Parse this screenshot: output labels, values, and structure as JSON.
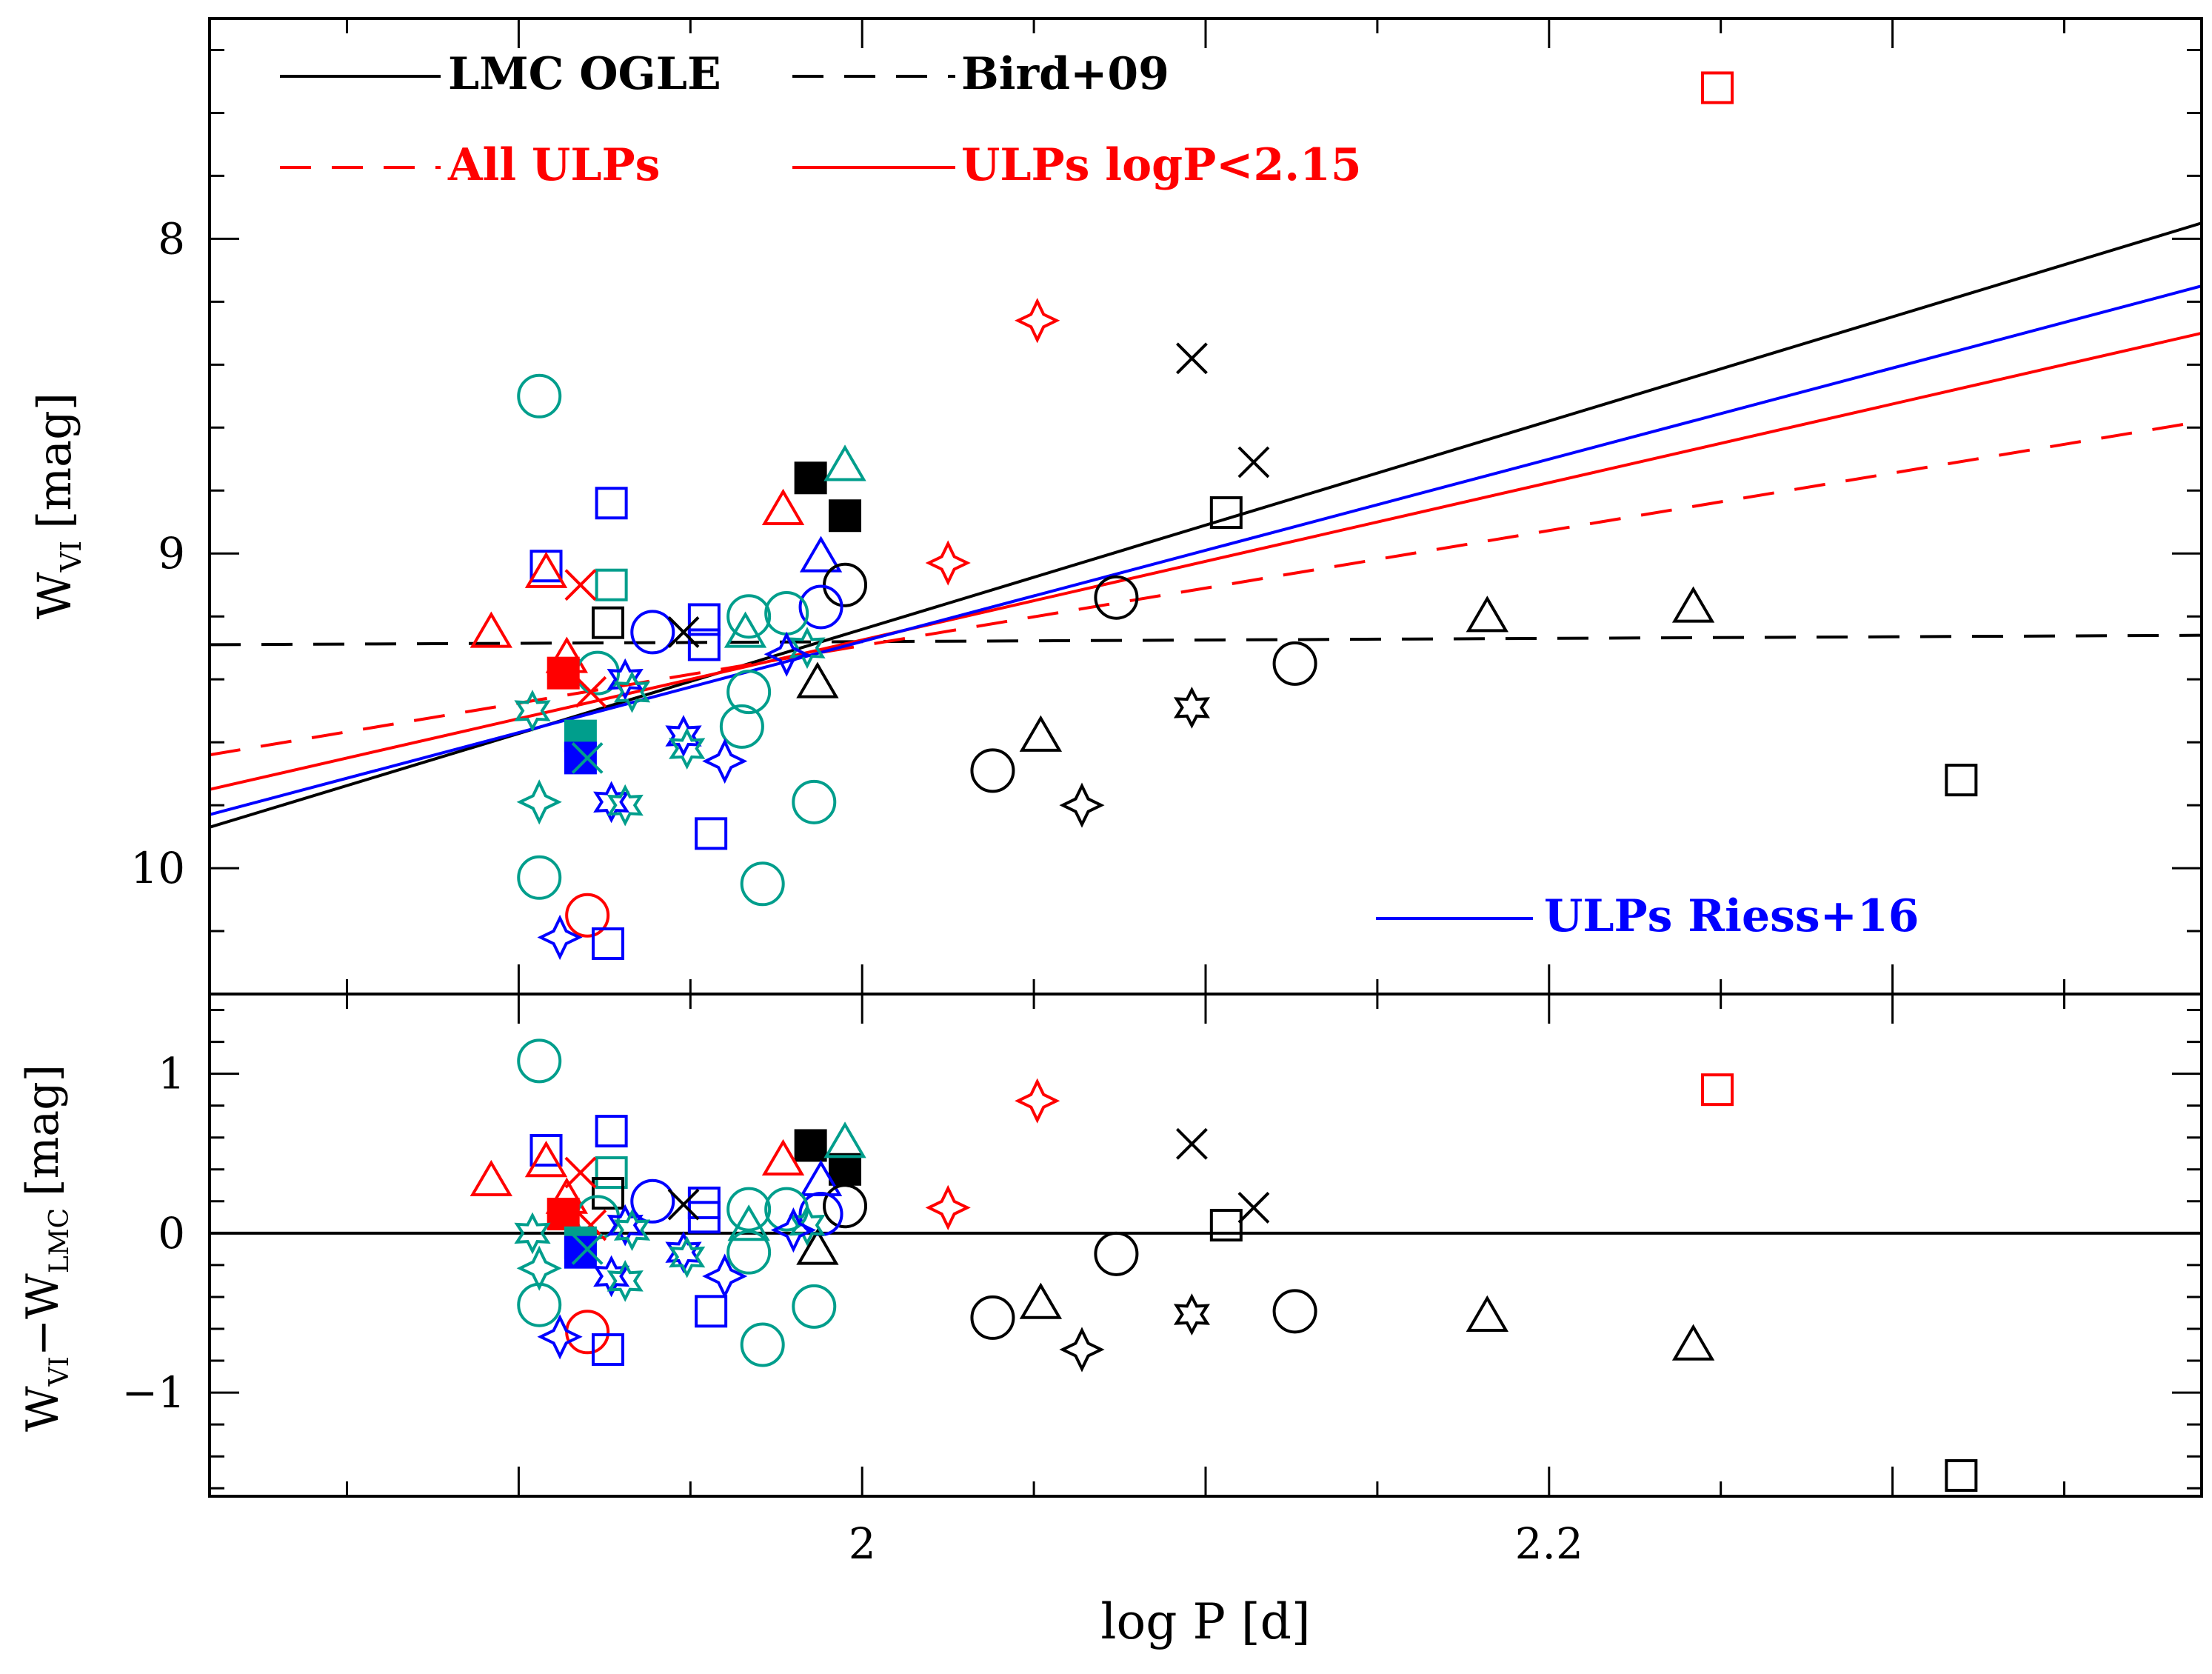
{
  "colors": {
    "black": "#000000",
    "red": "#ff0000",
    "blue": "#0000ff",
    "teal": "#009e8c"
  },
  "chart_data": {
    "type": "scatter",
    "xlabel": "log P [d]",
    "xlim": [
      1.81,
      2.39
    ],
    "x_ticks": [
      {
        "value": 2.0,
        "label": "2"
      },
      {
        "value": 2.2,
        "label": "2.2"
      }
    ],
    "x_minor_step": 0.05,
    "legend": {
      "lmc": "LMC OGLE",
      "bird": "Bird+09",
      "all_ulps": "All ULPs",
      "ulps_cut": "ULPs logP<2.15",
      "riess": "ULPs Riess+16"
    },
    "top_panel": {
      "ylabel_main": "W",
      "ylabel_sub": "VI",
      "ylabel_unit": "[mag]",
      "ylim": [
        10.4,
        7.3
      ],
      "inverted": true,
      "y_ticks": [
        {
          "value": 8,
          "label": "8"
        },
        {
          "value": 9,
          "label": "9"
        },
        {
          "value": 10,
          "label": "10"
        }
      ],
      "y_minor_step": 0.2,
      "lines": [
        {
          "name": "LMC OGLE",
          "color": "black",
          "dash": "solid",
          "x": [
            1.81,
            2.39
          ],
          "y": [
            9.87,
            7.95
          ]
        },
        {
          "name": "Bird+09",
          "color": "black",
          "dash": "dashed",
          "x": [
            1.81,
            2.39
          ],
          "y": [
            9.29,
            9.26
          ]
        },
        {
          "name": "All ULPs",
          "color": "red",
          "dash": "dashed",
          "x": [
            1.81,
            2.39
          ],
          "y": [
            9.64,
            8.58
          ]
        },
        {
          "name": "ULPs logP<2.15",
          "color": "red",
          "dash": "solid",
          "x": [
            1.81,
            2.39
          ],
          "y": [
            9.75,
            8.3
          ]
        },
        {
          "name": "ULPs Riess+16",
          "color": "blue",
          "dash": "solid",
          "x": [
            1.81,
            2.39
          ],
          "y": [
            9.83,
            8.15
          ]
        }
      ],
      "points": [
        {
          "x": 2.249,
          "y": 7.52,
          "m": "square",
          "c": "red"
        },
        {
          "x": 2.051,
          "y": 8.26,
          "m": "star4",
          "c": "red"
        },
        {
          "x": 2.025,
          "y": 9.03,
          "m": "star4",
          "c": "red"
        },
        {
          "x": 1.985,
          "y": 8.76,
          "m": "squareFill",
          "c": "black"
        },
        {
          "x": 1.995,
          "y": 8.88,
          "m": "squareFill",
          "c": "black"
        },
        {
          "x": 1.995,
          "y": 8.72,
          "m": "triangle",
          "c": "teal"
        },
        {
          "x": 1.977,
          "y": 8.86,
          "m": "triangle",
          "c": "red"
        },
        {
          "x": 1.988,
          "y": 9.01,
          "m": "triangle",
          "c": "blue"
        },
        {
          "x": 1.995,
          "y": 9.1,
          "m": "circle",
          "c": "black"
        },
        {
          "x": 1.988,
          "y": 9.17,
          "m": "circle",
          "c": "blue"
        },
        {
          "x": 1.978,
          "y": 9.19,
          "m": "circle",
          "c": "teal"
        },
        {
          "x": 1.967,
          "y": 9.2,
          "m": "circle",
          "c": "teal"
        },
        {
          "x": 1.967,
          "y": 9.44,
          "m": "circle",
          "c": "teal"
        },
        {
          "x": 1.965,
          "y": 9.55,
          "m": "circle",
          "c": "teal"
        },
        {
          "x": 1.987,
          "y": 9.41,
          "m": "triangle",
          "c": "black"
        },
        {
          "x": 1.984,
          "y": 9.3,
          "m": "star6",
          "c": "teal"
        },
        {
          "x": 1.978,
          "y": 9.32,
          "m": "star4",
          "c": "blue"
        },
        {
          "x": 1.966,
          "y": 9.25,
          "m": "triangle",
          "c": "teal"
        },
        {
          "x": 1.986,
          "y": 9.79,
          "m": "circle",
          "c": "teal"
        },
        {
          "x": 1.971,
          "y": 10.05,
          "m": "circle",
          "c": "teal"
        },
        {
          "x": 1.906,
          "y": 8.5,
          "m": "circle",
          "c": "teal"
        },
        {
          "x": 1.906,
          "y": 10.03,
          "m": "circle",
          "c": "teal"
        },
        {
          "x": 1.908,
          "y": 9.04,
          "m": "square",
          "c": "blue"
        },
        {
          "x": 1.927,
          "y": 8.84,
          "m": "square",
          "c": "blue"
        },
        {
          "x": 1.927,
          "y": 9.1,
          "m": "square",
          "c": "teal"
        },
        {
          "x": 1.926,
          "y": 9.22,
          "m": "square",
          "c": "black"
        },
        {
          "x": 1.954,
          "y": 9.21,
          "m": "square",
          "c": "blue"
        },
        {
          "x": 1.954,
          "y": 9.29,
          "m": "square",
          "c": "blue"
        },
        {
          "x": 1.939,
          "y": 9.25,
          "m": "circle",
          "c": "blue"
        },
        {
          "x": 1.948,
          "y": 9.25,
          "m": "cross",
          "c": "black"
        },
        {
          "x": 1.908,
          "y": 9.06,
          "m": "triangle",
          "c": "red"
        },
        {
          "x": 1.918,
          "y": 9.1,
          "m": "cross",
          "c": "red"
        },
        {
          "x": 1.892,
          "y": 9.25,
          "m": "triangle",
          "c": "red"
        },
        {
          "x": 1.914,
          "y": 9.33,
          "m": "triangle",
          "c": "red"
        },
        {
          "x": 1.923,
          "y": 9.38,
          "m": "circle",
          "c": "teal"
        },
        {
          "x": 1.913,
          "y": 9.38,
          "m": "squareFill",
          "c": "red"
        },
        {
          "x": 1.921,
          "y": 9.44,
          "m": "cross",
          "c": "red"
        },
        {
          "x": 1.931,
          "y": 9.4,
          "m": "star6",
          "c": "blue"
        },
        {
          "x": 1.933,
          "y": 9.44,
          "m": "star6",
          "c": "teal"
        },
        {
          "x": 1.904,
          "y": 9.5,
          "m": "star6",
          "c": "teal"
        },
        {
          "x": 1.918,
          "y": 9.58,
          "m": "squareFill",
          "c": "teal"
        },
        {
          "x": 1.918,
          "y": 9.65,
          "m": "squareFill",
          "c": "blue"
        },
        {
          "x": 1.92,
          "y": 9.65,
          "m": "cross",
          "c": "teal"
        },
        {
          "x": 1.948,
          "y": 9.58,
          "m": "star6",
          "c": "blue"
        },
        {
          "x": 1.949,
          "y": 9.62,
          "m": "star6",
          "c": "teal"
        },
        {
          "x": 1.96,
          "y": 9.66,
          "m": "star4",
          "c": "blue"
        },
        {
          "x": 1.906,
          "y": 9.79,
          "m": "star4",
          "c": "teal"
        },
        {
          "x": 1.927,
          "y": 9.79,
          "m": "star6",
          "c": "blue"
        },
        {
          "x": 1.931,
          "y": 9.8,
          "m": "star6",
          "c": "teal"
        },
        {
          "x": 1.956,
          "y": 9.89,
          "m": "square",
          "c": "blue"
        },
        {
          "x": 1.92,
          "y": 10.15,
          "m": "circle",
          "c": "red"
        },
        {
          "x": 1.912,
          "y": 10.22,
          "m": "star4",
          "c": "blue"
        },
        {
          "x": 1.926,
          "y": 10.24,
          "m": "square",
          "c": "blue"
        },
        {
          "x": 2.096,
          "y": 8.38,
          "m": "cross",
          "c": "black"
        },
        {
          "x": 2.114,
          "y": 8.71,
          "m": "cross",
          "c": "black"
        },
        {
          "x": 2.106,
          "y": 8.87,
          "m": "square",
          "c": "black"
        },
        {
          "x": 2.074,
          "y": 9.14,
          "m": "circle",
          "c": "black"
        },
        {
          "x": 2.126,
          "y": 9.35,
          "m": "circle",
          "c": "black"
        },
        {
          "x": 2.182,
          "y": 9.2,
          "m": "triangle",
          "c": "black"
        },
        {
          "x": 2.242,
          "y": 9.17,
          "m": "triangle",
          "c": "black"
        },
        {
          "x": 2.052,
          "y": 9.58,
          "m": "triangle",
          "c": "black"
        },
        {
          "x": 2.038,
          "y": 9.69,
          "m": "circle",
          "c": "black"
        },
        {
          "x": 2.064,
          "y": 9.8,
          "m": "star4",
          "c": "black"
        },
        {
          "x": 2.096,
          "y": 9.49,
          "m": "star6",
          "c": "black"
        },
        {
          "x": 2.32,
          "y": 9.72,
          "m": "square",
          "c": "black"
        }
      ]
    },
    "bottom_panel": {
      "ylabel_main": "W",
      "ylabel_sub1": "VI",
      "ylabel_minus": "−W",
      "ylabel_sub2": "LMC",
      "ylabel_unit": "[mag]",
      "ylim": [
        -1.65,
        1.5
      ],
      "y_ticks": [
        {
          "value": 1,
          "label": "1"
        },
        {
          "value": 0,
          "label": "0"
        },
        {
          "value": -1,
          "label": "−1"
        }
      ],
      "y_minor_step": 0.2,
      "zero_line": 0,
      "points": [
        {
          "x": 2.249,
          "y": 0.9,
          "m": "square",
          "c": "red"
        },
        {
          "x": 2.051,
          "y": 0.83,
          "m": "star4",
          "c": "red"
        },
        {
          "x": 2.025,
          "y": 0.16,
          "m": "star4",
          "c": "red"
        },
        {
          "x": 1.985,
          "y": 0.55,
          "m": "squareFill",
          "c": "black"
        },
        {
          "x": 1.995,
          "y": 0.4,
          "m": "squareFill",
          "c": "black"
        },
        {
          "x": 1.995,
          "y": 0.57,
          "m": "triangle",
          "c": "teal"
        },
        {
          "x": 1.977,
          "y": 0.46,
          "m": "triangle",
          "c": "red"
        },
        {
          "x": 1.988,
          "y": 0.33,
          "m": "triangle",
          "c": "blue"
        },
        {
          "x": 1.995,
          "y": 0.17,
          "m": "circle",
          "c": "black"
        },
        {
          "x": 1.988,
          "y": 0.12,
          "m": "circle",
          "c": "blue"
        },
        {
          "x": 1.978,
          "y": 0.15,
          "m": "circle",
          "c": "teal"
        },
        {
          "x": 1.967,
          "y": 0.15,
          "m": "circle",
          "c": "teal"
        },
        {
          "x": 1.967,
          "y": -0.12,
          "m": "circle",
          "c": "teal"
        },
        {
          "x": 1.967,
          "y": 0.05,
          "m": "triangle",
          "c": "teal"
        },
        {
          "x": 1.987,
          "y": -0.1,
          "m": "triangle",
          "c": "black"
        },
        {
          "x": 1.984,
          "y": 0.05,
          "m": "star6",
          "c": "teal"
        },
        {
          "x": 1.98,
          "y": 0.02,
          "m": "star4",
          "c": "blue"
        },
        {
          "x": 1.986,
          "y": -0.46,
          "m": "circle",
          "c": "teal"
        },
        {
          "x": 1.971,
          "y": -0.7,
          "m": "circle",
          "c": "teal"
        },
        {
          "x": 1.906,
          "y": 1.08,
          "m": "circle",
          "c": "teal"
        },
        {
          "x": 1.906,
          "y": -0.45,
          "m": "circle",
          "c": "teal"
        },
        {
          "x": 1.908,
          "y": 0.52,
          "m": "square",
          "c": "blue"
        },
        {
          "x": 1.927,
          "y": 0.64,
          "m": "square",
          "c": "blue"
        },
        {
          "x": 1.927,
          "y": 0.38,
          "m": "square",
          "c": "teal"
        },
        {
          "x": 1.926,
          "y": 0.25,
          "m": "square",
          "c": "black"
        },
        {
          "x": 1.954,
          "y": 0.19,
          "m": "square",
          "c": "blue"
        },
        {
          "x": 1.954,
          "y": 0.1,
          "m": "square",
          "c": "blue"
        },
        {
          "x": 1.939,
          "y": 0.2,
          "m": "circle",
          "c": "blue"
        },
        {
          "x": 1.948,
          "y": 0.18,
          "m": "cross",
          "c": "black"
        },
        {
          "x": 1.908,
          "y": 0.45,
          "m": "triangle",
          "c": "red"
        },
        {
          "x": 1.918,
          "y": 0.38,
          "m": "cross",
          "c": "red"
        },
        {
          "x": 1.892,
          "y": 0.33,
          "m": "triangle",
          "c": "red"
        },
        {
          "x": 1.914,
          "y": 0.22,
          "m": "triangle",
          "c": "red"
        },
        {
          "x": 1.923,
          "y": 0.1,
          "m": "circle",
          "c": "teal"
        },
        {
          "x": 1.913,
          "y": 0.12,
          "m": "squareFill",
          "c": "red"
        },
        {
          "x": 1.921,
          "y": 0.05,
          "m": "cross",
          "c": "red"
        },
        {
          "x": 1.931,
          "y": 0.05,
          "m": "star6",
          "c": "blue"
        },
        {
          "x": 1.933,
          "y": 0.02,
          "m": "star6",
          "c": "teal"
        },
        {
          "x": 1.904,
          "y": 0.0,
          "m": "star6",
          "c": "teal"
        },
        {
          "x": 1.918,
          "y": -0.06,
          "m": "squareFill",
          "c": "teal"
        },
        {
          "x": 1.918,
          "y": -0.12,
          "m": "squareFill",
          "c": "blue"
        },
        {
          "x": 1.92,
          "y": -0.1,
          "m": "cross",
          "c": "teal"
        },
        {
          "x": 1.948,
          "y": -0.12,
          "m": "star6",
          "c": "blue"
        },
        {
          "x": 1.949,
          "y": -0.15,
          "m": "star6",
          "c": "teal"
        },
        {
          "x": 1.96,
          "y": -0.27,
          "m": "star4",
          "c": "blue"
        },
        {
          "x": 1.906,
          "y": -0.22,
          "m": "star4",
          "c": "teal"
        },
        {
          "x": 1.927,
          "y": -0.27,
          "m": "star6",
          "c": "blue"
        },
        {
          "x": 1.931,
          "y": -0.3,
          "m": "star6",
          "c": "teal"
        },
        {
          "x": 1.956,
          "y": -0.49,
          "m": "square",
          "c": "blue"
        },
        {
          "x": 1.92,
          "y": -0.62,
          "m": "circle",
          "c": "red"
        },
        {
          "x": 1.912,
          "y": -0.65,
          "m": "star4",
          "c": "blue"
        },
        {
          "x": 1.926,
          "y": -0.73,
          "m": "square",
          "c": "blue"
        },
        {
          "x": 2.096,
          "y": 0.56,
          "m": "cross",
          "c": "black"
        },
        {
          "x": 2.114,
          "y": 0.16,
          "m": "cross",
          "c": "black"
        },
        {
          "x": 2.106,
          "y": 0.05,
          "m": "square",
          "c": "black"
        },
        {
          "x": 2.074,
          "y": -0.13,
          "m": "circle",
          "c": "black"
        },
        {
          "x": 2.126,
          "y": -0.49,
          "m": "circle",
          "c": "black"
        },
        {
          "x": 2.182,
          "y": -0.52,
          "m": "triangle",
          "c": "black"
        },
        {
          "x": 2.242,
          "y": -0.7,
          "m": "triangle",
          "c": "black"
        },
        {
          "x": 2.052,
          "y": -0.44,
          "m": "triangle",
          "c": "black"
        },
        {
          "x": 2.038,
          "y": -0.53,
          "m": "circle",
          "c": "black"
        },
        {
          "x": 2.064,
          "y": -0.73,
          "m": "star4",
          "c": "black"
        },
        {
          "x": 2.096,
          "y": -0.51,
          "m": "star6",
          "c": "black"
        },
        {
          "x": 2.32,
          "y": -1.52,
          "m": "square",
          "c": "black"
        }
      ]
    }
  }
}
